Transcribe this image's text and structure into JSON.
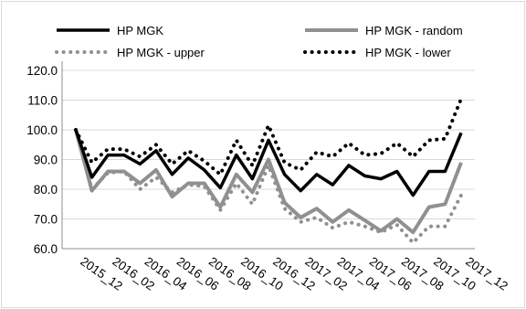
{
  "chart_data": {
    "type": "line",
    "title": "",
    "xlabel": "",
    "ylabel": "",
    "ylim": [
      60,
      120
    ],
    "yticks": [
      "60.0",
      "70.0",
      "80.0",
      "90.0",
      "100.0",
      "110.0",
      "120.0"
    ],
    "categories": [
      "2015_12",
      "2016_01",
      "2016_02",
      "2016_03",
      "2016_04",
      "2016_05",
      "2016_06",
      "2016_07",
      "2016_08",
      "2016_09",
      "2016_10",
      "2016_11",
      "2016_12",
      "2017_01",
      "2017_02",
      "2017_03",
      "2017_04",
      "2017_05",
      "2017_06",
      "2017_07",
      "2017_08",
      "2017_09",
      "2017_10",
      "2017_11",
      "2017_12"
    ],
    "tick_labels": [
      "2015_12",
      "2016_02",
      "2016_04",
      "2016_06",
      "2016_08",
      "2016_10",
      "2016_12",
      "2017_02",
      "2017_04",
      "2017_06",
      "2017_08",
      "2017_10",
      "2017_12"
    ],
    "grid": "horizontal",
    "legend_position": "top",
    "series": [
      {
        "name": "HP MGK",
        "style": "solid",
        "color": "#000000",
        "values": [
          100,
          84,
          91.5,
          91.5,
          88.5,
          93,
          85,
          90.5,
          86.5,
          80.5,
          91.5,
          83.5,
          96.5,
          85,
          79.5,
          85,
          81.5,
          88,
          84.5,
          83.5,
          86,
          78,
          86,
          86,
          99
        ]
      },
      {
        "name": "HP MGK - random",
        "style": "solid",
        "color": "#909090",
        "values": [
          100,
          79.5,
          86,
          86,
          82,
          86.5,
          77.5,
          82,
          82,
          74,
          85,
          79,
          90,
          75.5,
          70.5,
          73.5,
          69,
          73,
          69.5,
          66,
          70,
          65.5,
          74,
          75,
          89
        ]
      },
      {
        "name": "HP MGK - upper",
        "style": "dotted",
        "color": "#909090",
        "values": [
          100,
          80,
          85.5,
          86,
          80,
          84,
          79,
          81.5,
          81,
          73,
          82,
          75,
          88,
          73.5,
          69,
          70.5,
          67,
          69,
          67.5,
          65.5,
          68,
          62,
          67.5,
          67.5,
          78
        ]
      },
      {
        "name": "HP MGK - lower",
        "style": "dotted",
        "color": "#000000",
        "values": [
          100,
          89,
          93.5,
          93.5,
          91,
          95,
          88.5,
          93,
          89.5,
          85,
          96.5,
          88,
          101.5,
          89,
          86.5,
          92.5,
          91,
          95.5,
          91.5,
          92,
          95.5,
          91,
          96.5,
          97,
          110.5
        ]
      }
    ]
  }
}
